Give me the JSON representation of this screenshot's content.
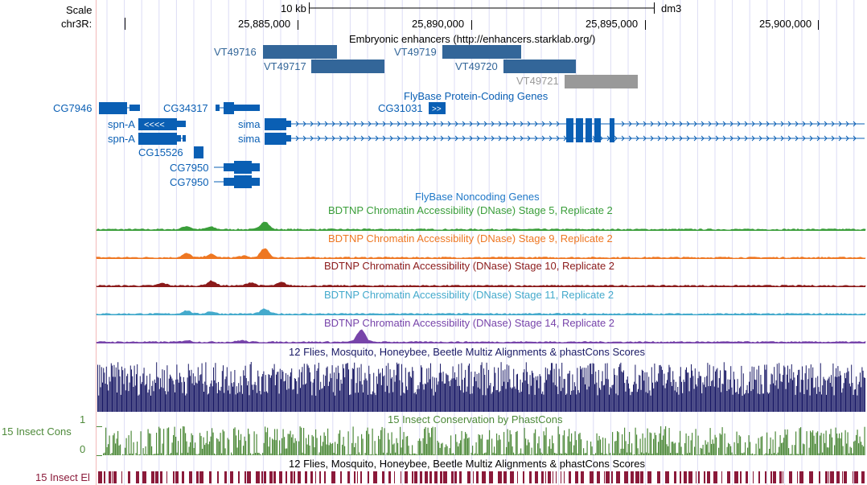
{
  "ruler": {
    "scale_label": "Scale",
    "scale_bar_label": "10 kb",
    "assembly": "dm3",
    "chrom_label": "chr3R:",
    "ticks": [
      "25,885,000",
      "25,890,000",
      "25,895,000",
      "25,900,000"
    ]
  },
  "tracks": {
    "enhancers": {
      "title": "Embryonic enhancers (http://enhancers.starklab.org/)",
      "color": "#336699",
      "faded_color": "#999999",
      "items": [
        {
          "name": "VT49716",
          "faded": false
        },
        {
          "name": "VT49717",
          "faded": false
        },
        {
          "name": "VT49719",
          "faded": false
        },
        {
          "name": "VT49720",
          "faded": false
        },
        {
          "name": "VT49721",
          "faded": true
        }
      ]
    },
    "flybase_coding": {
      "title": "FlyBase Protein-Coding Genes",
      "color": "#0a5fb4",
      "genes": [
        "CG7946",
        "CG34317",
        "CG31031",
        "spn-A",
        "sima",
        "spn-A",
        "sima",
        "CG15526",
        "CG7950",
        "CG7950"
      ]
    },
    "flybase_noncoding": {
      "title": "FlyBase Noncoding Genes",
      "color": "#1f78c8"
    },
    "dnase": [
      {
        "title": "BDTNP Chromatin Accessibility (DNase) Stage 5, Replicate 2",
        "color": "#3a9e3a"
      },
      {
        "title": "BDTNP Chromatin Accessibility (DNase) Stage 9, Replicate 2",
        "color": "#ee7722"
      },
      {
        "title": "BDTNP Chromatin Accessibility (DNase) Stage 10, Replicate 2",
        "color": "#8b1a1a"
      },
      {
        "title": "BDTNP Chromatin Accessibility (DNase) Stage 11, Replicate 2",
        "color": "#44aacc"
      },
      {
        "title": "BDTNP Chromatin Accessibility (DNase) Stage 14, Replicate 2",
        "color": "#7744aa"
      }
    ],
    "multiz": {
      "title": "12 Flies, Mosquito, Honeybee, Beetle Multiz Alignments & phastCons Scores",
      "color": "#1a1a66"
    },
    "phastcons": {
      "title": "15 Insect Conservation by PhastCons",
      "side_label": "15 Insect Cons",
      "axis_max": "1",
      "axis_min": "0",
      "color": "#4e8a3a"
    },
    "elements": {
      "title": "12 Flies, Mosquito, Honeybee, Beetle Multiz Alignments & phastCons Scores",
      "side_label": "15 Insect El",
      "color": "#8b1a3a"
    }
  }
}
